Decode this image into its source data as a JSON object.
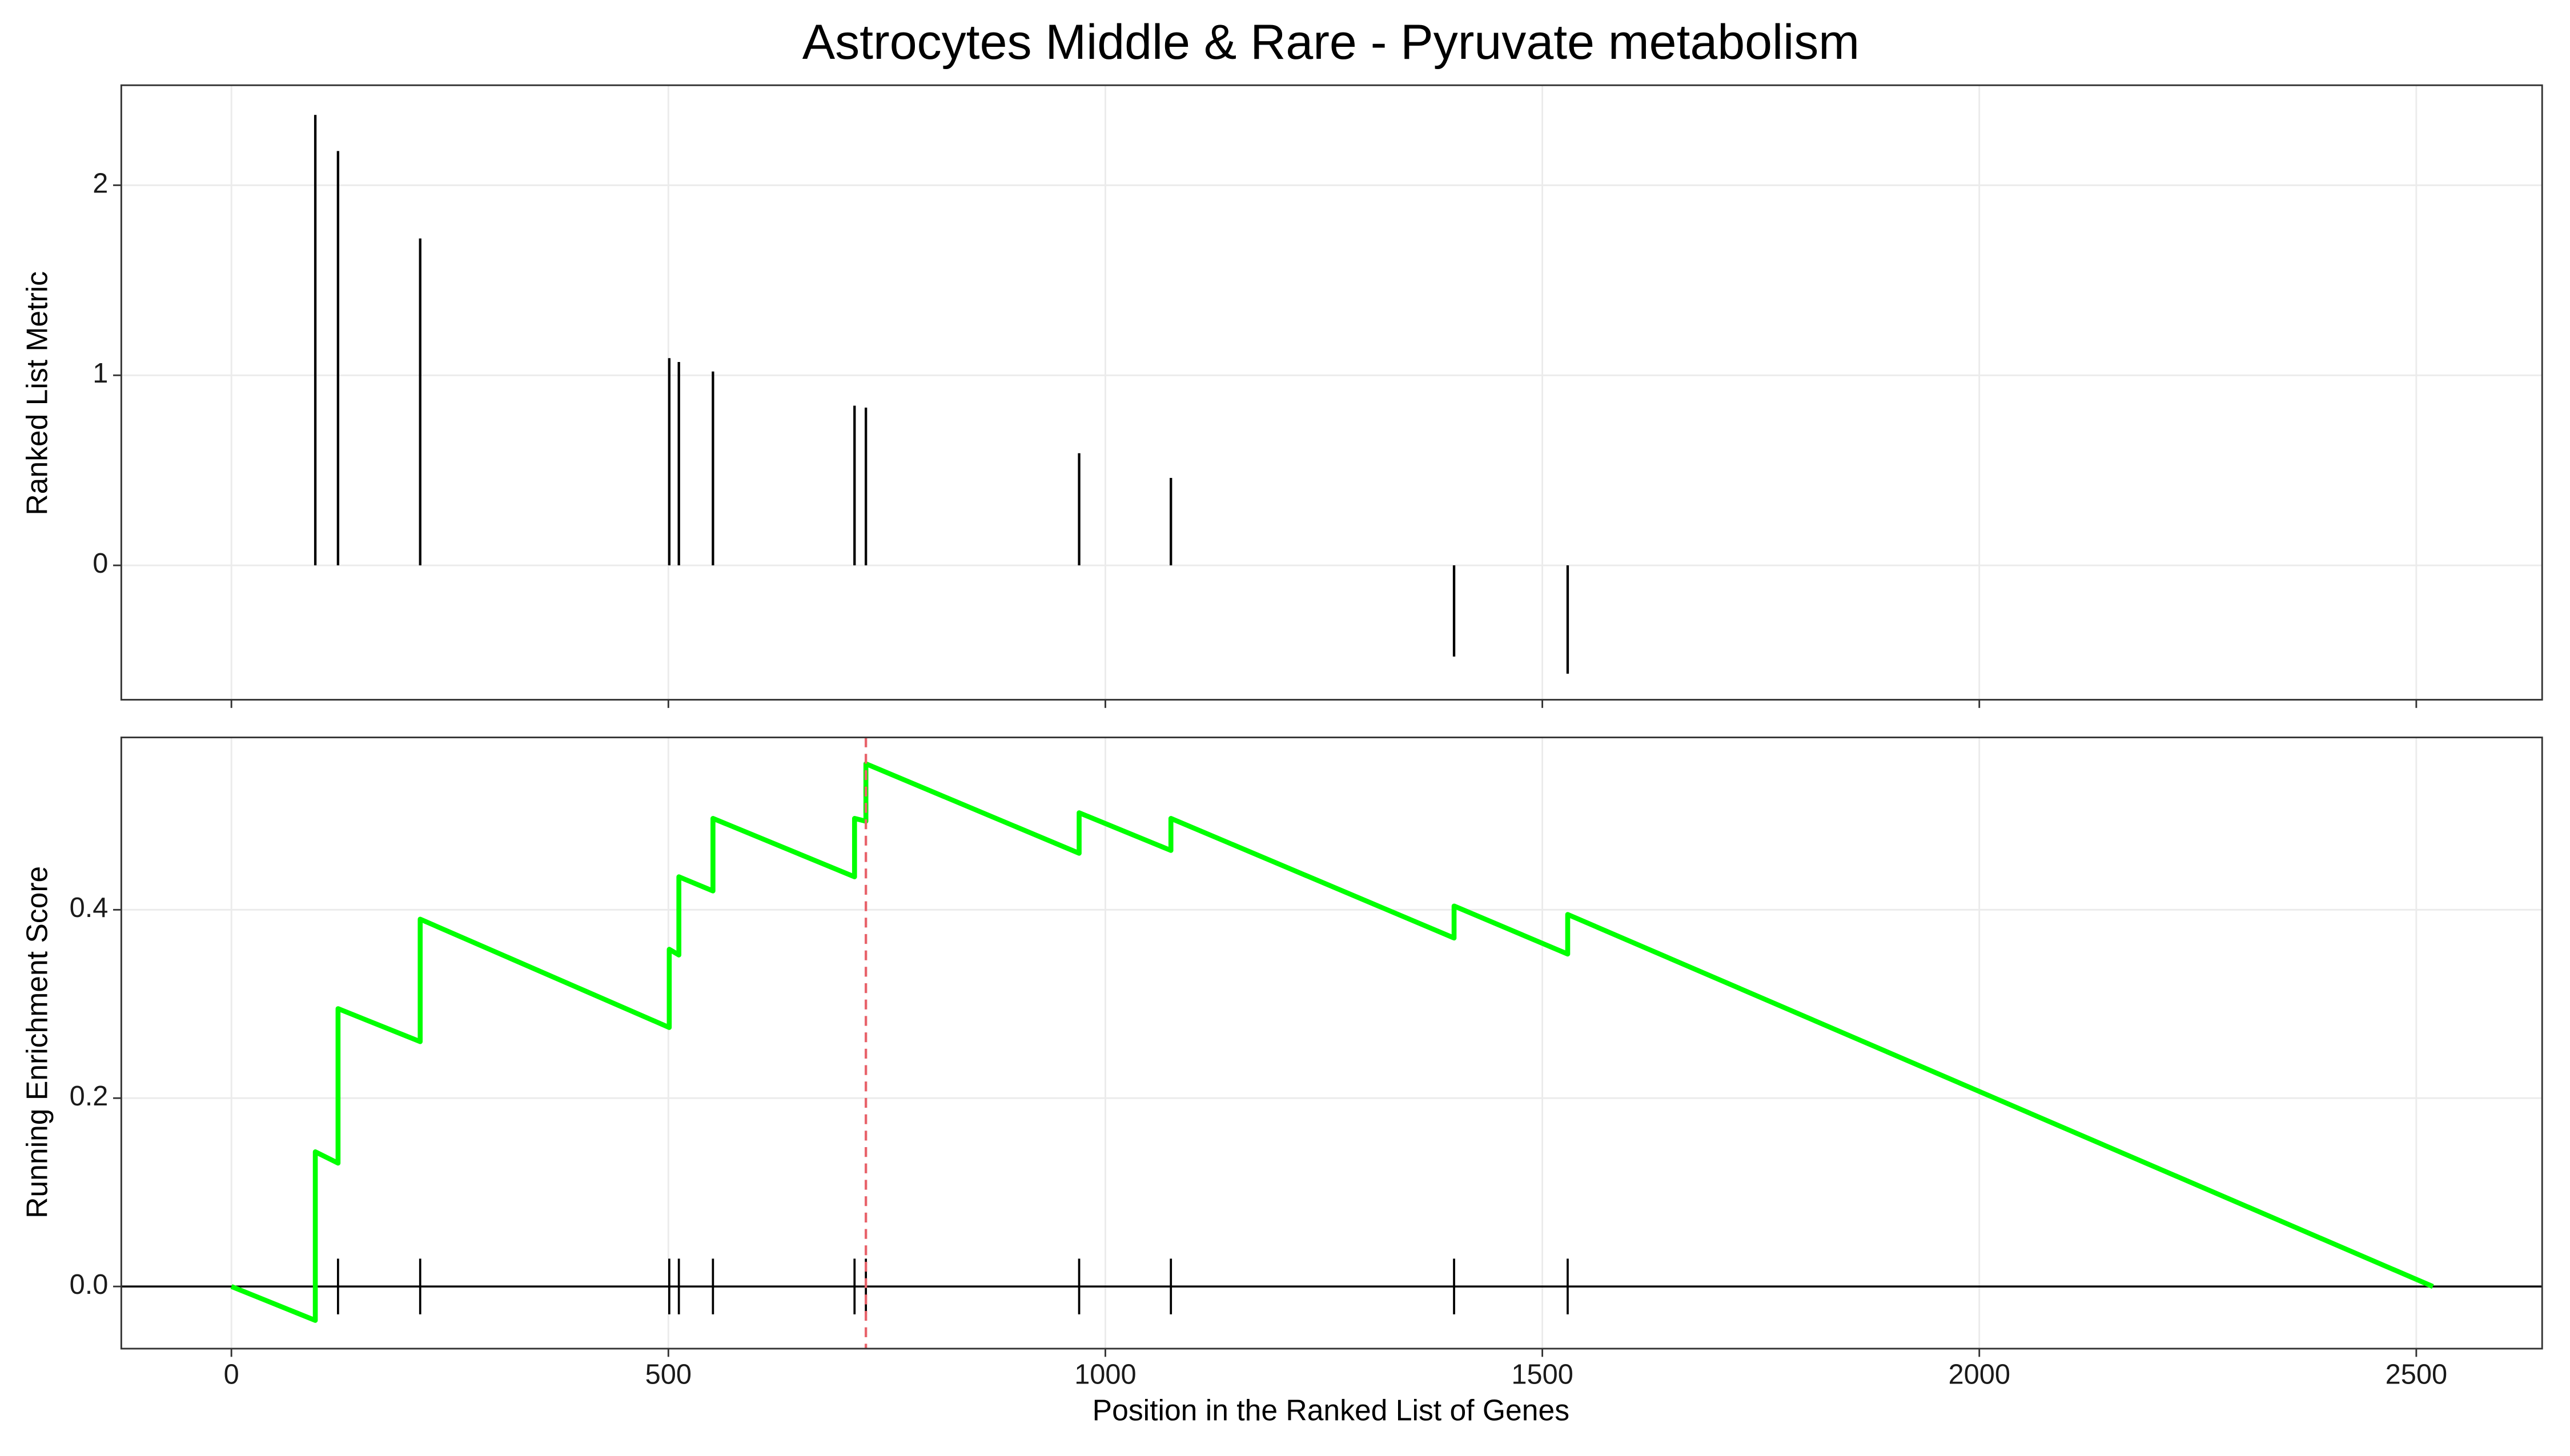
{
  "chart_data": [
    {
      "type": "bar",
      "title": "Astrocytes Middle & Rare - Pyruvate metabolism",
      "y_label": "Ranked List Metric",
      "x": [
        96,
        122,
        216,
        501,
        512,
        551,
        713,
        726,
        970,
        1075,
        1399,
        1529
      ],
      "values": [
        2.37,
        2.18,
        1.72,
        1.09,
        1.07,
        1.02,
        0.84,
        0.83,
        0.59,
        0.46,
        -0.48,
        -0.57
      ],
      "color": "#000000",
      "xlim": [
        -126,
        2644
      ],
      "xticks": [
        0,
        500,
        1000,
        1500,
        2000,
        2500
      ],
      "ylim": [
        -0.707,
        2.526
      ],
      "yticks": [
        0,
        1,
        2
      ],
      "grid": true
    },
    {
      "type": "line",
      "y_label": "Running Enrichment Score",
      "x_label": "Position in the Ranked List of Genes",
      "x": [
        0,
        96,
        96,
        122,
        122,
        216,
        216,
        501,
        501,
        512,
        512,
        551,
        551,
        713,
        713,
        726,
        726,
        970,
        970,
        1075,
        1075,
        1399,
        1399,
        1529,
        1529,
        2519
      ],
      "series": [
        {
          "color": "#00ff00",
          "values": [
            0,
            -0.036,
            0.143,
            0.131,
            0.295,
            0.26,
            0.39,
            0.275,
            0.358,
            0.352,
            0.435,
            0.42,
            0.497,
            0.435,
            0.497,
            0.494,
            0.555,
            0.46,
            0.503,
            0.463,
            0.497,
            0.37,
            0.404,
            0.353,
            0.395,
            0
          ]
        }
      ],
      "vline": 726,
      "vline_color": "#e8636b",
      "xlim": [
        -126,
        2644
      ],
      "xticks": [
        0,
        500,
        1000,
        1500,
        2000,
        2500
      ],
      "ylim": [
        -0.066,
        0.583
      ],
      "yticks": [
        {
          "value": 0,
          "label": "0.0"
        },
        0.2,
        0.4
      ],
      "grid": true
    }
  ]
}
